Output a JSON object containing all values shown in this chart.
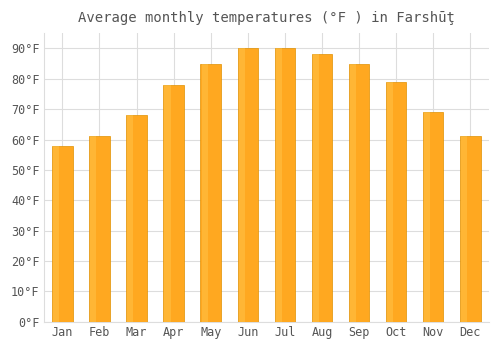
{
  "title": "Average monthly temperatures (°F ) in Farshūţ",
  "months": [
    "Jan",
    "Feb",
    "Mar",
    "Apr",
    "May",
    "Jun",
    "Jul",
    "Aug",
    "Sep",
    "Oct",
    "Nov",
    "Dec"
  ],
  "values": [
    58,
    61,
    68,
    78,
    85,
    90,
    90,
    88,
    85,
    79,
    69,
    61
  ],
  "bar_color": "#FFA820",
  "bar_edge_color": "#E09000",
  "background_color": "#ffffff",
  "grid_color": "#dddddd",
  "text_color": "#555555",
  "ylim": [
    0,
    95
  ],
  "yticks": [
    0,
    10,
    20,
    30,
    40,
    50,
    60,
    70,
    80,
    90
  ],
  "ytick_labels": [
    "0°F",
    "10°F",
    "20°F",
    "30°F",
    "40°F",
    "50°F",
    "60°F",
    "70°F",
    "80°F",
    "90°F"
  ],
  "title_fontsize": 10,
  "tick_fontsize": 8.5,
  "bar_width": 0.55
}
